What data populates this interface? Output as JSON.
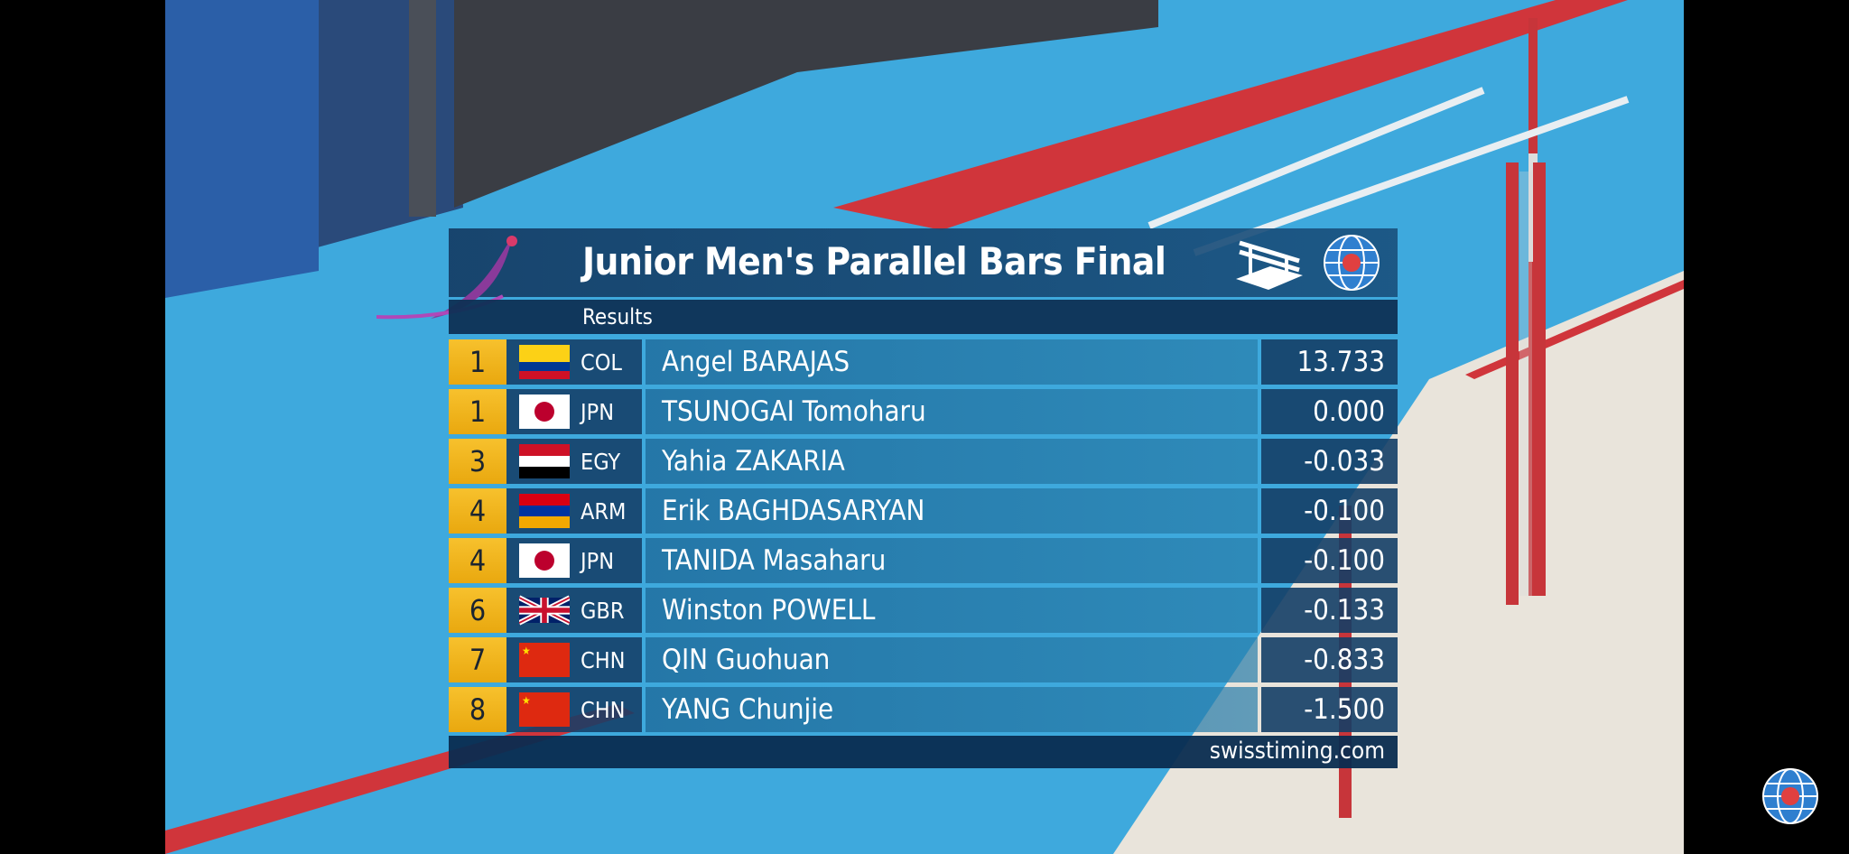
{
  "scoreboard": {
    "title": "Junior Men's Parallel Bars Final",
    "subtitle": "Results",
    "apparatus_icon": "parallel-bars-icon",
    "federation_logo": "FIG",
    "footer": "swisstiming.com",
    "colors": {
      "rank_bg": "#f2b61f",
      "panel_bg": "#143e66",
      "name_bg": "#2a7aa8"
    },
    "rows": [
      {
        "rank": "1",
        "noc": "COL",
        "flag": "colombia",
        "name": "Angel BARAJAS",
        "score": "13.733"
      },
      {
        "rank": "1",
        "noc": "JPN",
        "flag": "japan",
        "name": "TSUNOGAI Tomoharu",
        "score": "0.000"
      },
      {
        "rank": "3",
        "noc": "EGY",
        "flag": "egypt",
        "name": "Yahia ZAKARIA",
        "score": "-0.033"
      },
      {
        "rank": "4",
        "noc": "ARM",
        "flag": "armenia",
        "name": "Erik BAGHDASARYAN",
        "score": "-0.100"
      },
      {
        "rank": "4",
        "noc": "JPN",
        "flag": "japan",
        "name": "TANIDA Masaharu",
        "score": "-0.100"
      },
      {
        "rank": "6",
        "noc": "GBR",
        "flag": "uk",
        "name": "Winston POWELL",
        "score": "-0.133"
      },
      {
        "rank": "7",
        "noc": "CHN",
        "flag": "china",
        "name": "QIN Guohuan",
        "score": "-0.833"
      },
      {
        "rank": "8",
        "noc": "CHN",
        "flag": "china",
        "name": "YANG Chunjie",
        "score": "-1.500"
      }
    ]
  },
  "corner_logo": "FIG"
}
